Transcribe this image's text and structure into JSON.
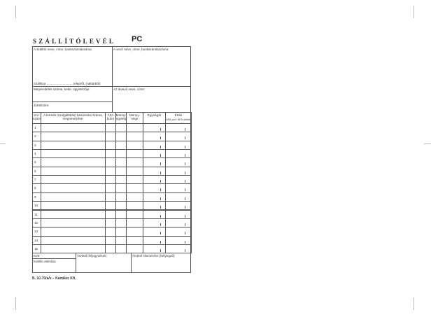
{
  "title": "SZÁLLÍTÓLEVÉL",
  "code": "PC",
  "supplier_label": "A szállító neve, címe, bankszámlaszáma:",
  "buyer_label": "A vevő neve, címe, bankszámlaszáma:",
  "shipping_line": "Szállítva ............................. telepről, (raktárból)",
  "order_label": "Megrendelés száma, kelte, ügyintézője:",
  "recipient_label": "Az átvevő neve, címe:",
  "vehicle_label": "Járatszám:",
  "table": {
    "headers": [
      "Sor-\nszám",
      "A termék (szolgáltatás) besorolási száma, megnevezése:",
      "ÁFA kulcs",
      "Menny. egység",
      "Menny-\nsége",
      "Egységár",
      "Érték"
    ],
    "value_sub": "ÁFA-val / ÁFA nélkül",
    "rows": [
      "1",
      "2",
      "3",
      "4",
      "5",
      "6",
      "7",
      "8",
      "9",
      "10",
      "11",
      "12",
      "13",
      "14",
      "15"
    ]
  },
  "footer": {
    "date_label": "Kelt:",
    "issuer_label": "Kiállító aláírása:",
    "delivery_notes_label": "Átvételi feljegyzések:",
    "receipt_label": "Átvétel elismerése (bélyegző):"
  },
  "imprint": "B. 10-70/a/v  –  Kamiker Kft."
}
